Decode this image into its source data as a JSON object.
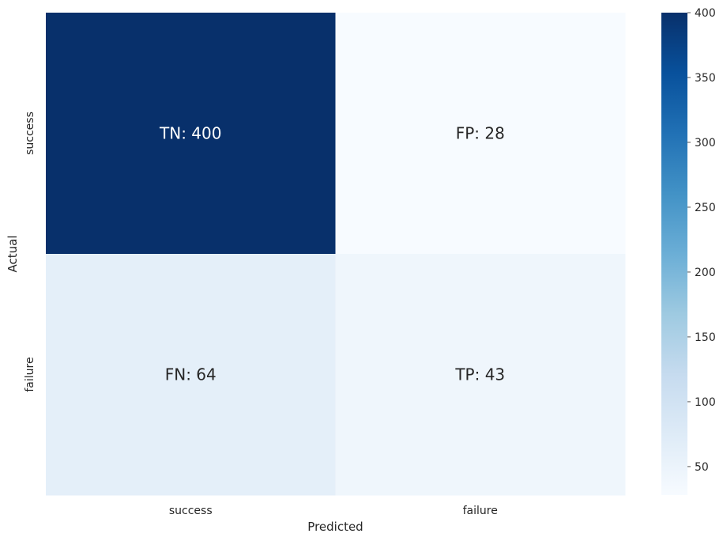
{
  "chart_data": {
    "type": "heatmap",
    "title": "",
    "xlabel": "Predicted",
    "ylabel": "Actual",
    "x_categories": [
      "success",
      "failure"
    ],
    "y_categories": [
      "success",
      "failure"
    ],
    "values": [
      [
        400,
        28
      ],
      [
        64,
        43
      ]
    ],
    "annotations": [
      [
        "TN: 400",
        "FP: 28"
      ],
      [
        "FN: 64",
        "TP: 43"
      ]
    ],
    "colormap": "Blues",
    "colorbar": {
      "min": 28,
      "max": 400,
      "ticks": [
        50,
        100,
        150,
        200,
        250,
        300,
        350,
        400
      ]
    },
    "grid": false,
    "legend": "colorbar-right"
  }
}
